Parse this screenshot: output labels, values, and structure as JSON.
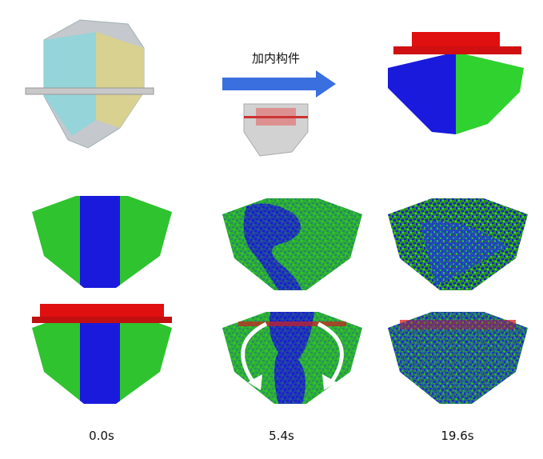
{
  "annotation": "加内构件",
  "time_labels": [
    "0.0s",
    "5.4s",
    "19.6s"
  ]
}
